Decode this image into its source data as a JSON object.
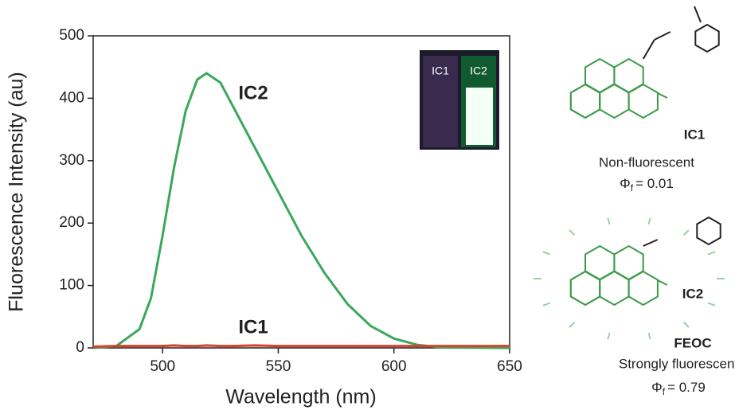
{
  "chart_data": {
    "type": "line",
    "x": [
      470,
      480,
      490,
      495,
      500,
      505,
      510,
      515,
      519,
      525,
      530,
      540,
      550,
      560,
      570,
      580,
      590,
      600,
      610,
      620,
      650
    ],
    "series": [
      {
        "name": "IC2",
        "color": "#3aa85a",
        "values": [
          0,
          3,
          30,
          80,
          180,
          290,
          380,
          430,
          440,
          425,
          390,
          320,
          250,
          180,
          120,
          70,
          35,
          15,
          5,
          1,
          0
        ]
      },
      {
        "name": "IC1",
        "color": "#d9422b",
        "values": [
          2,
          3,
          3,
          3,
          3,
          4,
          3,
          3,
          4,
          3,
          3,
          4,
          3,
          3,
          3,
          3,
          3,
          3,
          3,
          3,
          3
        ]
      }
    ],
    "xlabel": "Wavelength (nm)",
    "ylabel": "Fluorescence Intensity (au)",
    "xlim": [
      470,
      650
    ],
    "xticks": [
      500,
      550,
      600,
      650
    ],
    "ylim": [
      0,
      500
    ],
    "yticks": [
      0,
      100,
      200,
      300,
      400,
      500
    ],
    "annotations": [
      "IC2",
      "IC1"
    ],
    "inset_labels": [
      "IC1",
      "IC2"
    ]
  },
  "structures": [
    {
      "name": "IC1",
      "description": "Non-fluorescent",
      "yield": {
        "symbol": "Φ",
        "subscript": "f",
        "value": "= 0.01"
      }
    },
    {
      "name": "IC2",
      "code": "FEOC",
      "description": "Strongly fluorescent",
      "yield": {
        "symbol": "Φ",
        "subscript": "f",
        "value": "= 0.79"
      }
    }
  ]
}
